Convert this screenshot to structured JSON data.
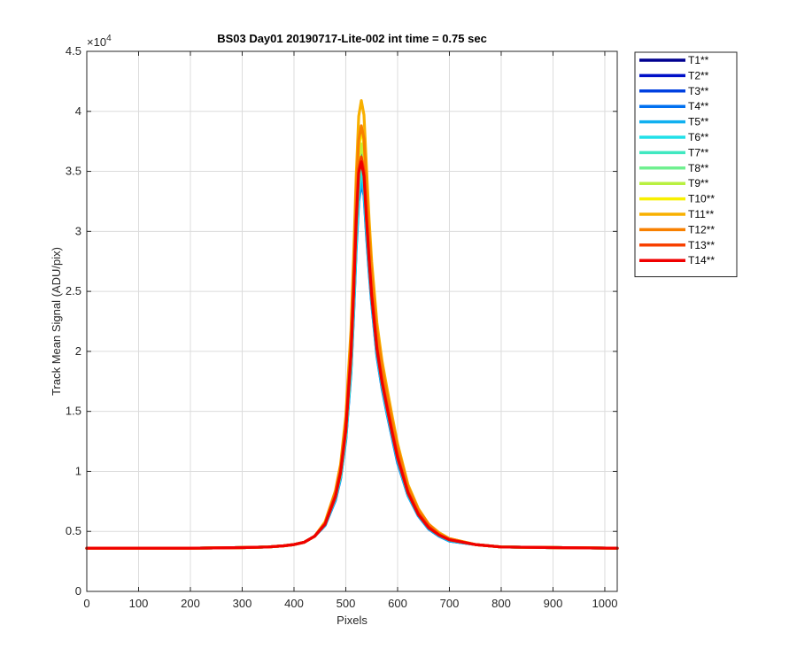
{
  "chart_data": {
    "type": "line",
    "title": "BS03 Day01 20190717-Lite-002 int time = 0.75 sec",
    "xlabel": "Pixels",
    "ylabel": "Track Mean Signal (ADU/pix)",
    "y_exponent_label": "×10",
    "y_exponent_power": "4",
    "xlim": [
      0,
      1024
    ],
    "ylim": [
      0,
      4.5
    ],
    "xticks": [
      0,
      100,
      200,
      300,
      400,
      500,
      600,
      700,
      800,
      900,
      1000
    ],
    "xtick_labels": [
      "0",
      "100",
      "200",
      "300",
      "400",
      "500",
      "600",
      "700",
      "800",
      "900",
      "1000"
    ],
    "yticks": [
      0,
      0.5,
      1,
      1.5,
      2,
      2.5,
      3,
      3.5,
      4,
      4.5
    ],
    "ytick_labels": [
      "0",
      "0.5",
      "1",
      "1.5",
      "2",
      "2.5",
      "3",
      "3.5",
      "4",
      "4.5"
    ],
    "grid": true,
    "legend_position": "outside-right-top",
    "x": [
      0,
      100,
      200,
      300,
      350,
      380,
      400,
      420,
      440,
      460,
      480,
      490,
      500,
      510,
      515,
      520,
      525,
      530,
      535,
      540,
      545,
      550,
      560,
      570,
      580,
      590,
      600,
      620,
      640,
      660,
      680,
      700,
      750,
      800,
      900,
      1024
    ],
    "series": [
      {
        "name": "T1**",
        "color": "#000090",
        "values": [
          0.36,
          0.36,
          0.36,
          0.365,
          0.37,
          0.38,
          0.39,
          0.41,
          0.46,
          0.56,
          0.78,
          0.97,
          1.3,
          1.9,
          2.4,
          3.0,
          3.45,
          3.62,
          3.5,
          3.1,
          2.75,
          2.45,
          2.0,
          1.72,
          1.5,
          1.3,
          1.1,
          0.82,
          0.64,
          0.53,
          0.47,
          0.43,
          0.39,
          0.37,
          0.365,
          0.36
        ]
      },
      {
        "name": "T2**",
        "color": "#0010c8",
        "values": [
          0.36,
          0.36,
          0.36,
          0.365,
          0.37,
          0.38,
          0.39,
          0.41,
          0.46,
          0.56,
          0.78,
          0.97,
          1.3,
          1.9,
          2.4,
          3.0,
          3.46,
          3.64,
          3.52,
          3.12,
          2.77,
          2.47,
          2.02,
          1.74,
          1.52,
          1.31,
          1.11,
          0.83,
          0.65,
          0.53,
          0.47,
          0.43,
          0.39,
          0.37,
          0.365,
          0.36
        ]
      },
      {
        "name": "T3**",
        "color": "#0040e0",
        "values": [
          0.36,
          0.36,
          0.36,
          0.365,
          0.37,
          0.38,
          0.39,
          0.41,
          0.46,
          0.55,
          0.77,
          0.95,
          1.28,
          1.85,
          2.35,
          2.9,
          3.3,
          3.45,
          3.35,
          3.0,
          2.7,
          2.42,
          1.98,
          1.7,
          1.48,
          1.28,
          1.08,
          0.8,
          0.63,
          0.52,
          0.46,
          0.42,
          0.39,
          0.37,
          0.365,
          0.36
        ]
      },
      {
        "name": "T4**",
        "color": "#0070f0",
        "values": [
          0.36,
          0.36,
          0.36,
          0.365,
          0.37,
          0.38,
          0.39,
          0.41,
          0.46,
          0.55,
          0.76,
          0.94,
          1.26,
          1.82,
          2.3,
          2.85,
          3.25,
          3.4,
          3.3,
          2.96,
          2.66,
          2.4,
          1.96,
          1.69,
          1.47,
          1.27,
          1.07,
          0.8,
          0.63,
          0.52,
          0.46,
          0.42,
          0.39,
          0.37,
          0.365,
          0.36
        ]
      },
      {
        "name": "T5**",
        "color": "#10b0f0",
        "values": [
          0.36,
          0.36,
          0.36,
          0.365,
          0.37,
          0.38,
          0.39,
          0.41,
          0.46,
          0.55,
          0.77,
          0.95,
          1.27,
          1.84,
          2.32,
          2.88,
          3.28,
          3.43,
          3.32,
          2.98,
          2.68,
          2.41,
          1.97,
          1.7,
          1.48,
          1.28,
          1.08,
          0.8,
          0.63,
          0.52,
          0.46,
          0.42,
          0.39,
          0.37,
          0.365,
          0.36
        ]
      },
      {
        "name": "T6**",
        "color": "#20e0e8",
        "values": [
          0.36,
          0.36,
          0.36,
          0.365,
          0.37,
          0.38,
          0.39,
          0.41,
          0.46,
          0.56,
          0.78,
          0.96,
          1.29,
          1.87,
          2.37,
          2.93,
          3.34,
          3.5,
          3.38,
          3.03,
          2.72,
          2.44,
          2.0,
          1.72,
          1.5,
          1.3,
          1.1,
          0.81,
          0.64,
          0.53,
          0.47,
          0.43,
          0.39,
          0.37,
          0.365,
          0.36
        ]
      },
      {
        "name": "T7**",
        "color": "#40e8c0",
        "values": [
          0.36,
          0.36,
          0.36,
          0.365,
          0.37,
          0.38,
          0.39,
          0.41,
          0.46,
          0.56,
          0.78,
          0.97,
          1.3,
          1.9,
          2.4,
          2.98,
          3.4,
          3.56,
          3.44,
          3.07,
          2.75,
          2.46,
          2.02,
          1.74,
          1.52,
          1.31,
          1.11,
          0.82,
          0.64,
          0.53,
          0.47,
          0.43,
          0.39,
          0.37,
          0.365,
          0.36
        ]
      },
      {
        "name": "T8**",
        "color": "#70f090",
        "values": [
          0.36,
          0.36,
          0.36,
          0.365,
          0.37,
          0.38,
          0.39,
          0.41,
          0.46,
          0.56,
          0.79,
          0.98,
          1.32,
          1.93,
          2.44,
          3.03,
          3.46,
          3.62,
          3.5,
          3.12,
          2.79,
          2.49,
          2.04,
          1.76,
          1.54,
          1.33,
          1.13,
          0.83,
          0.65,
          0.54,
          0.47,
          0.43,
          0.39,
          0.37,
          0.365,
          0.36
        ]
      },
      {
        "name": "T9**",
        "color": "#b8f040",
        "values": [
          0.36,
          0.36,
          0.36,
          0.365,
          0.37,
          0.38,
          0.39,
          0.41,
          0.46,
          0.56,
          0.8,
          0.99,
          1.34,
          1.97,
          2.5,
          3.1,
          3.56,
          3.73,
          3.6,
          3.2,
          2.85,
          2.54,
          2.08,
          1.79,
          1.56,
          1.35,
          1.15,
          0.84,
          0.66,
          0.54,
          0.47,
          0.43,
          0.39,
          0.37,
          0.365,
          0.36
        ]
      },
      {
        "name": "T10**",
        "color": "#f8f000",
        "values": [
          0.36,
          0.36,
          0.36,
          0.365,
          0.37,
          0.38,
          0.39,
          0.41,
          0.46,
          0.57,
          0.81,
          1.01,
          1.37,
          2.02,
          2.57,
          3.2,
          3.68,
          3.86,
          3.72,
          3.3,
          2.93,
          2.6,
          2.13,
          1.83,
          1.6,
          1.38,
          1.17,
          0.85,
          0.67,
          0.55,
          0.48,
          0.44,
          0.39,
          0.37,
          0.365,
          0.36
        ]
      },
      {
        "name": "T11**",
        "color": "#f8b000",
        "values": [
          0.36,
          0.36,
          0.36,
          0.365,
          0.37,
          0.38,
          0.39,
          0.41,
          0.46,
          0.58,
          0.84,
          1.06,
          1.46,
          2.17,
          2.77,
          3.45,
          3.96,
          4.09,
          3.97,
          3.52,
          3.1,
          2.75,
          2.24,
          1.92,
          1.68,
          1.45,
          1.23,
          0.89,
          0.69,
          0.56,
          0.49,
          0.44,
          0.39,
          0.37,
          0.365,
          0.36
        ]
      },
      {
        "name": "T12**",
        "color": "#f88000",
        "values": [
          0.36,
          0.36,
          0.36,
          0.365,
          0.37,
          0.38,
          0.39,
          0.41,
          0.46,
          0.57,
          0.83,
          1.04,
          1.42,
          2.1,
          2.68,
          3.33,
          3.76,
          3.88,
          3.77,
          3.36,
          2.97,
          2.65,
          2.17,
          1.87,
          1.63,
          1.41,
          1.2,
          0.87,
          0.68,
          0.56,
          0.48,
          0.44,
          0.39,
          0.37,
          0.365,
          0.36
        ]
      },
      {
        "name": "T13**",
        "color": "#f84000",
        "values": [
          0.36,
          0.36,
          0.36,
          0.365,
          0.37,
          0.38,
          0.39,
          0.41,
          0.46,
          0.56,
          0.8,
          1.0,
          1.35,
          1.98,
          2.5,
          3.1,
          3.52,
          3.62,
          3.5,
          3.12,
          2.78,
          2.48,
          2.04,
          1.76,
          1.54,
          1.33,
          1.13,
          0.83,
          0.65,
          0.54,
          0.47,
          0.43,
          0.39,
          0.37,
          0.365,
          0.36
        ]
      },
      {
        "name": "T14**",
        "color": "#f00000",
        "values": [
          0.36,
          0.36,
          0.36,
          0.365,
          0.37,
          0.38,
          0.39,
          0.41,
          0.46,
          0.56,
          0.79,
          0.99,
          1.34,
          1.96,
          2.48,
          3.07,
          3.49,
          3.58,
          3.46,
          3.09,
          2.76,
          2.46,
          2.02,
          1.74,
          1.52,
          1.31,
          1.11,
          0.82,
          0.64,
          0.53,
          0.47,
          0.43,
          0.39,
          0.37,
          0.365,
          0.36
        ]
      }
    ]
  }
}
